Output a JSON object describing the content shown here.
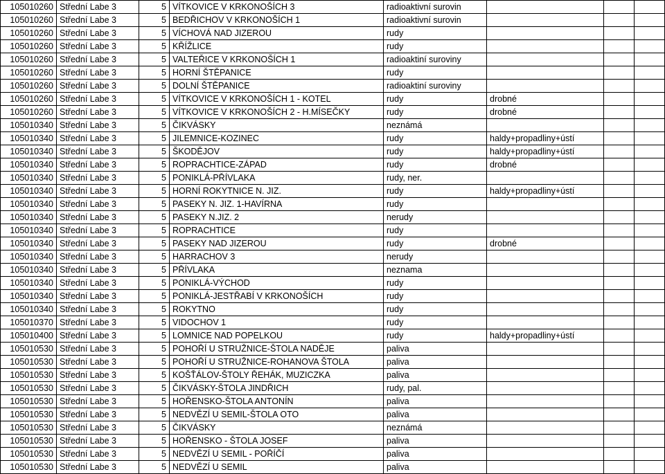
{
  "rows": [
    {
      "c0": "105010260",
      "c1": "Střední Labe 3",
      "c2": "5",
      "c3": "VÍTKOVICE V KRKONOŠÍCH 3",
      "c4": "radioaktivní surovin",
      "c5": ""
    },
    {
      "c0": "105010260",
      "c1": "Střední Labe 3",
      "c2": "5",
      "c3": "BEDŘICHOV V KRKONOŠÍCH 1",
      "c4": "radioaktivní surovin",
      "c5": ""
    },
    {
      "c0": "105010260",
      "c1": "Střední Labe 3",
      "c2": "5",
      "c3": "VÍCHOVÁ NAD JIZEROU",
      "c4": "rudy",
      "c5": ""
    },
    {
      "c0": "105010260",
      "c1": "Střední Labe 3",
      "c2": "5",
      "c3": "KŘÍŽLICE",
      "c4": "rudy",
      "c5": ""
    },
    {
      "c0": "105010260",
      "c1": "Střední Labe 3",
      "c2": "5",
      "c3": "VALTEŘICE V KRKONOŠÍCH 1",
      "c4": "radioaktiní suroviny",
      "c5": ""
    },
    {
      "c0": "105010260",
      "c1": "Střední Labe 3",
      "c2": "5",
      "c3": "HORNÍ ŠTĚPANICE",
      "c4": "rudy",
      "c5": ""
    },
    {
      "c0": "105010260",
      "c1": "Střední Labe 3",
      "c2": "5",
      "c3": "DOLNÍ ŠTĚPANICE",
      "c4": "radioaktiní suroviny",
      "c5": ""
    },
    {
      "c0": "105010260",
      "c1": "Střední Labe 3",
      "c2": "5",
      "c3": "VÍTKOVICE V KRKONOŠÍCH 1 - KOTEL",
      "c4": "rudy",
      "c5": "drobné"
    },
    {
      "c0": "105010260",
      "c1": "Střední Labe 3",
      "c2": "5",
      "c3": "VÍTKOVICE V KRKONOŠÍCH 2 - H.MÍSEČKY",
      "c4": "rudy",
      "c5": "drobné"
    },
    {
      "c0": "105010340",
      "c1": "Střední Labe 3",
      "c2": "5",
      "c3": "ČIKVÁSKY",
      "c4": "neznámá",
      "c5": ""
    },
    {
      "c0": "105010340",
      "c1": "Střední Labe 3",
      "c2": "5",
      "c3": "JILEMNICE-KOZINEC",
      "c4": "rudy",
      "c5": "haldy+propadliny+ústí"
    },
    {
      "c0": "105010340",
      "c1": "Střední Labe 3",
      "c2": "5",
      "c3": "ŠKODĚJOV",
      "c4": "rudy",
      "c5": "haldy+propadliny+ústí"
    },
    {
      "c0": "105010340",
      "c1": "Střední Labe 3",
      "c2": "5",
      "c3": "ROPRACHTICE-ZÁPAD",
      "c4": "rudy",
      "c5": "drobné"
    },
    {
      "c0": "105010340",
      "c1": "Střední Labe 3",
      "c2": "5",
      "c3": "PONIKLÁ-PŘÍVLAKA",
      "c4": "rudy, ner.",
      "c5": ""
    },
    {
      "c0": "105010340",
      "c1": "Střední Labe 3",
      "c2": "5",
      "c3": "HORNÍ ROKYTNICE N. JIZ.",
      "c4": "rudy",
      "c5": "haldy+propadliny+ústí"
    },
    {
      "c0": "105010340",
      "c1": "Střední Labe 3",
      "c2": "5",
      "c3": "PASEKY N. JIZ. 1-HAVÍRNA",
      "c4": "rudy",
      "c5": ""
    },
    {
      "c0": "105010340",
      "c1": "Střední Labe 3",
      "c2": "5",
      "c3": "PASEKY N.JIZ. 2",
      "c4": "nerudy",
      "c5": ""
    },
    {
      "c0": "105010340",
      "c1": "Střední Labe 3",
      "c2": "5",
      "c3": "ROPRACHTICE",
      "c4": "rudy",
      "c5": ""
    },
    {
      "c0": "105010340",
      "c1": "Střední Labe 3",
      "c2": "5",
      "c3": "PASEKY NAD JIZEROU",
      "c4": "rudy",
      "c5": "drobné"
    },
    {
      "c0": "105010340",
      "c1": "Střední Labe 3",
      "c2": "5",
      "c3": "HARRACHOV 3",
      "c4": "nerudy",
      "c5": ""
    },
    {
      "c0": "105010340",
      "c1": "Střední Labe 3",
      "c2": "5",
      "c3": "PŘÍVLAKA",
      "c4": "neznama",
      "c5": ""
    },
    {
      "c0": "105010340",
      "c1": "Střední Labe 3",
      "c2": "5",
      "c3": "PONIKLÁ-VÝCHOD",
      "c4": "rudy",
      "c5": ""
    },
    {
      "c0": "105010340",
      "c1": "Střední Labe 3",
      "c2": "5",
      "c3": "PONIKLÁ-JESTŘABÍ V KRKONOŠÍCH",
      "c4": "rudy",
      "c5": ""
    },
    {
      "c0": "105010340",
      "c1": "Střední Labe 3",
      "c2": "5",
      "c3": "ROKYTNO",
      "c4": "rudy",
      "c5": ""
    },
    {
      "c0": "105010370",
      "c1": "Střední Labe 3",
      "c2": "5",
      "c3": "VIDOCHOV 1",
      "c4": "rudy",
      "c5": ""
    },
    {
      "c0": "105010400",
      "c1": "Střední Labe 3",
      "c2": "5",
      "c3": "LOMNICE NAD POPELKOU",
      "c4": "rudy",
      "c5": "haldy+propadliny+ústí"
    },
    {
      "c0": "105010530",
      "c1": "Střední Labe 3",
      "c2": "5",
      "c3": "POHOŘÍ U STRUŽNICE-ŠTOLA NADĚJE",
      "c4": "paliva",
      "c5": ""
    },
    {
      "c0": "105010530",
      "c1": "Střední Labe 3",
      "c2": "5",
      "c3": "POHOŘÍ U STRUŽNICE-ROHANOVA ŠTOLA",
      "c4": "paliva",
      "c5": ""
    },
    {
      "c0": "105010530",
      "c1": "Střední Labe 3",
      "c2": "5",
      "c3": "KOŠŤÁLOV-ŠTOLY ŘEHÁK, MUZICZKA",
      "c4": "paliva",
      "c5": ""
    },
    {
      "c0": "105010530",
      "c1": "Střední Labe 3",
      "c2": "5",
      "c3": "ČIKVÁSKY-ŠTOLA JINDŘICH",
      "c4": "rudy, pal.",
      "c5": ""
    },
    {
      "c0": "105010530",
      "c1": "Střední Labe 3",
      "c2": "5",
      "c3": "HOŘENSKO-ŠTOLA ANTONÍN",
      "c4": "paliva",
      "c5": ""
    },
    {
      "c0": "105010530",
      "c1": "Střední Labe 3",
      "c2": "5",
      "c3": "NEDVĚZÍ U SEMIL-ŠTOLA OTO",
      "c4": "paliva",
      "c5": ""
    },
    {
      "c0": "105010530",
      "c1": "Střední Labe 3",
      "c2": "5",
      "c3": "ČIKVÁSKY",
      "c4": "neznámá",
      "c5": ""
    },
    {
      "c0": "105010530",
      "c1": "Střední Labe 3",
      "c2": "5",
      "c3": "HOŘENSKO - ŠTOLA JOSEF",
      "c4": "paliva",
      "c5": ""
    },
    {
      "c0": "105010530",
      "c1": "Střední Labe 3",
      "c2": "5",
      "c3": "NEDVĚZÍ U SEMIL - POŘÍČÍ",
      "c4": "paliva",
      "c5": ""
    },
    {
      "c0": "105010530",
      "c1": "Střední Labe 3",
      "c2": "5",
      "c3": "NEDVĚZÍ U SEMIL",
      "c4": "paliva",
      "c5": ""
    }
  ]
}
